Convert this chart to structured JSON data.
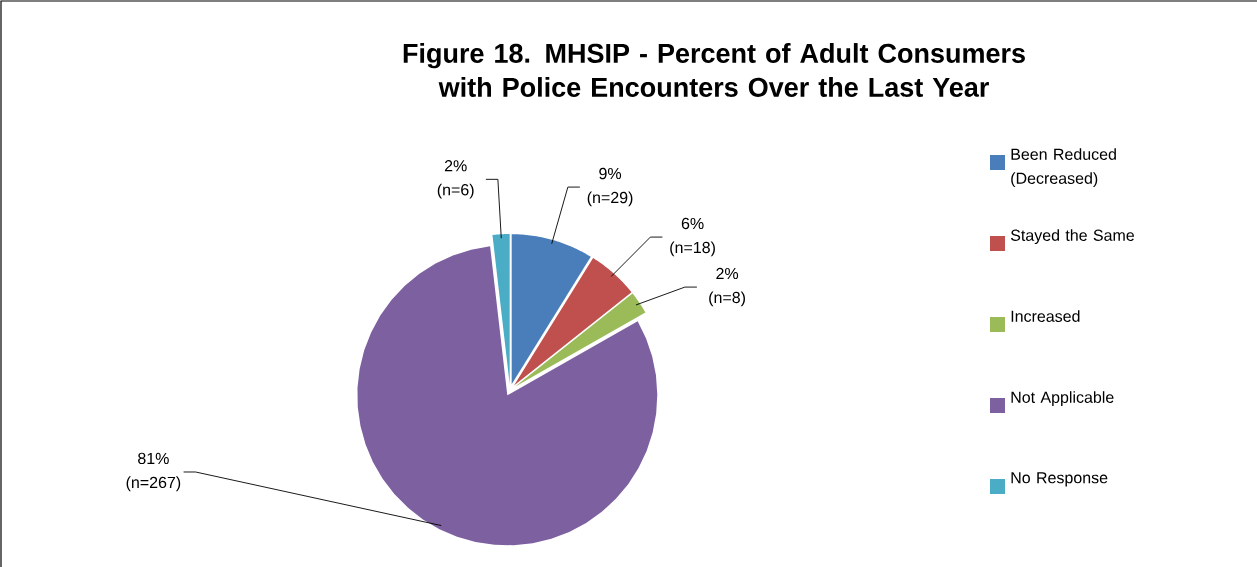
{
  "chart_data": {
    "type": "pie",
    "title": "Figure 18. MHSIP - Percent of Adult Consumers with Police Encounters Over the Last Year",
    "categories": [
      "Been Reduced (Decreased)",
      "Stayed the Same",
      "Increased",
      "Not Applicable",
      "No Response"
    ],
    "values": [
      29,
      18,
      8,
      267,
      6
    ],
    "value_labels": [
      "9% (n=29)",
      "6% (n=18)",
      "2% (n=8)",
      "81% (n=267)",
      "2% (n=6)"
    ],
    "colors": [
      "#4a7ebb",
      "#c0504d",
      "#9bbb59",
      "#7d60a0",
      "#4bacc6"
    ],
    "legend": "right"
  }
}
